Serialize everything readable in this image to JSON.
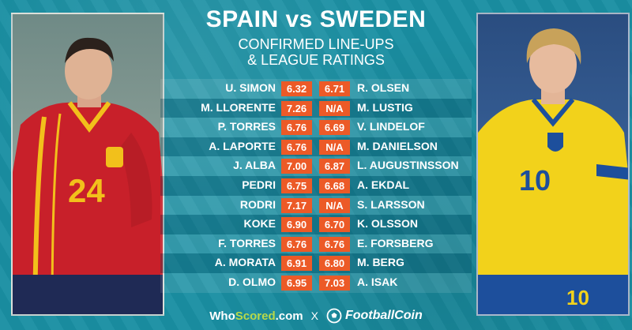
{
  "header": {
    "title": "SPAIN vs SWEDEN",
    "subtitle_line1": "CONFIRMED LINE-UPS",
    "subtitle_line2": "& LEAGUE RATINGS"
  },
  "photos": {
    "left_shirt_number": "24",
    "right_shirt_number": "10",
    "right_shorts_number": "10"
  },
  "lineups": [
    {
      "home": "U. SIMON",
      "home_rating": "6.32",
      "away_rating": "6.71",
      "away": "R. OLSEN"
    },
    {
      "home": "M. LLORENTE",
      "home_rating": "7.26",
      "away_rating": "N/A",
      "away": "M. LUSTIG"
    },
    {
      "home": "P. TORRES",
      "home_rating": "6.76",
      "away_rating": "6.69",
      "away": "V. LINDELOF"
    },
    {
      "home": "A. LAPORTE",
      "home_rating": "6.76",
      "away_rating": "N/A",
      "away": "M. DANIELSON"
    },
    {
      "home": "J. ALBA",
      "home_rating": "7.00",
      "away_rating": "6.87",
      "away": "L. AUGUSTINSSON"
    },
    {
      "home": "PEDRI",
      "home_rating": "6.75",
      "away_rating": "6.68",
      "away": "A. EKDAL"
    },
    {
      "home": "RODRI",
      "home_rating": "7.17",
      "away_rating": "N/A",
      "away": "S. LARSSON"
    },
    {
      "home": "KOKE",
      "home_rating": "6.90",
      "away_rating": "6.70",
      "away": "K. OLSSON"
    },
    {
      "home": "F. TORRES",
      "home_rating": "6.76",
      "away_rating": "6.76",
      "away": "E. FORSBERG"
    },
    {
      "home": "A. MORATA",
      "home_rating": "6.91",
      "away_rating": "6.80",
      "away": "M. BERG"
    },
    {
      "home": "D. OLMO",
      "home_rating": "6.95",
      "away_rating": "7.03",
      "away": "A. ISAK"
    }
  ],
  "footer": {
    "whoscored_who": "Who",
    "whoscored_scored": "Scored",
    "whoscored_com": ".com",
    "separator": "X",
    "footballcoin": "FootballCoin"
  },
  "colors": {
    "background": "#1a8fa3",
    "rating_box": "#ec5a27",
    "spain_red": "#c8202a",
    "sweden_yellow": "#f2d21b"
  }
}
